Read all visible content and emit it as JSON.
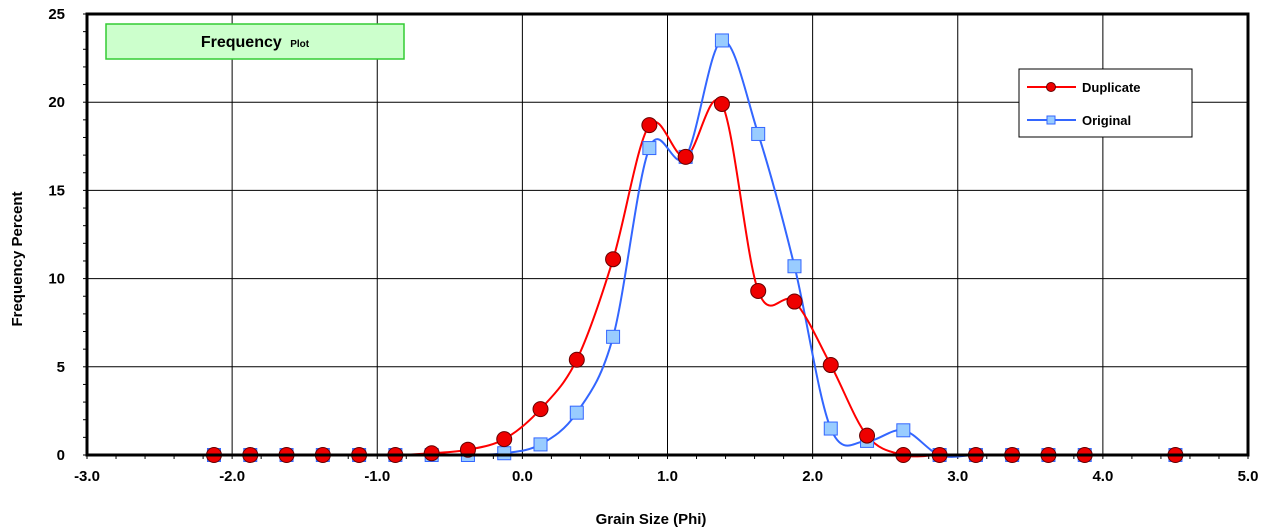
{
  "chart_data": {
    "type": "line",
    "title": "Frequency",
    "title_suffix": "Plot",
    "xlabel": "Grain Size (Phi)",
    "ylabel": "Frequency Percent",
    "xlim": [
      -3.0,
      5.0
    ],
    "ylim": [
      0,
      25
    ],
    "x_ticks": [
      "-3.0",
      "-2.0",
      "-1.0",
      "0.0",
      "1.0",
      "2.0",
      "3.0",
      "4.0",
      "5.0"
    ],
    "y_ticks": [
      "0",
      "5",
      "10",
      "15",
      "20",
      "25"
    ],
    "grid": true,
    "legend_position": "top-right",
    "title_box_color": "#ccffcc",
    "title_box_border": "#33cc33",
    "series": [
      {
        "name": "Duplicate",
        "color": "#ff0000",
        "marker": "circle",
        "marker_fill": "#ee0000",
        "x": [
          -2.125,
          -1.875,
          -1.625,
          -1.375,
          -1.125,
          -0.875,
          -0.625,
          -0.375,
          -0.125,
          0.125,
          0.375,
          0.625,
          0.875,
          1.125,
          1.375,
          1.625,
          1.875,
          2.125,
          2.375,
          2.625,
          2.875,
          3.125,
          3.375,
          3.625,
          3.875,
          4.5
        ],
        "y": [
          0.0,
          0.0,
          0.0,
          0.0,
          0.0,
          0.0,
          0.1,
          0.3,
          0.9,
          2.6,
          5.4,
          11.1,
          18.7,
          16.9,
          19.9,
          9.3,
          8.7,
          5.1,
          1.1,
          0.0,
          0.0,
          0.0,
          0.0,
          0.0,
          0.0,
          0.0
        ]
      },
      {
        "name": "Original",
        "color": "#3366ff",
        "marker": "square",
        "marker_fill": "#99ccff",
        "x": [
          -2.125,
          -1.875,
          -1.625,
          -1.375,
          -1.125,
          -0.875,
          -0.625,
          -0.375,
          -0.125,
          0.125,
          0.375,
          0.625,
          0.875,
          1.125,
          1.375,
          1.625,
          1.875,
          2.125,
          2.375,
          2.625,
          2.875,
          3.125,
          3.375,
          3.625,
          3.875,
          4.5
        ],
        "y": [
          0.0,
          0.0,
          0.0,
          0.0,
          0.0,
          0.0,
          0.0,
          0.0,
          0.1,
          0.6,
          2.4,
          6.7,
          17.4,
          16.9,
          23.5,
          18.2,
          10.7,
          1.5,
          0.8,
          1.4,
          0.0,
          0.0,
          0.0,
          0.0,
          0.0,
          0.0
        ]
      }
    ]
  }
}
